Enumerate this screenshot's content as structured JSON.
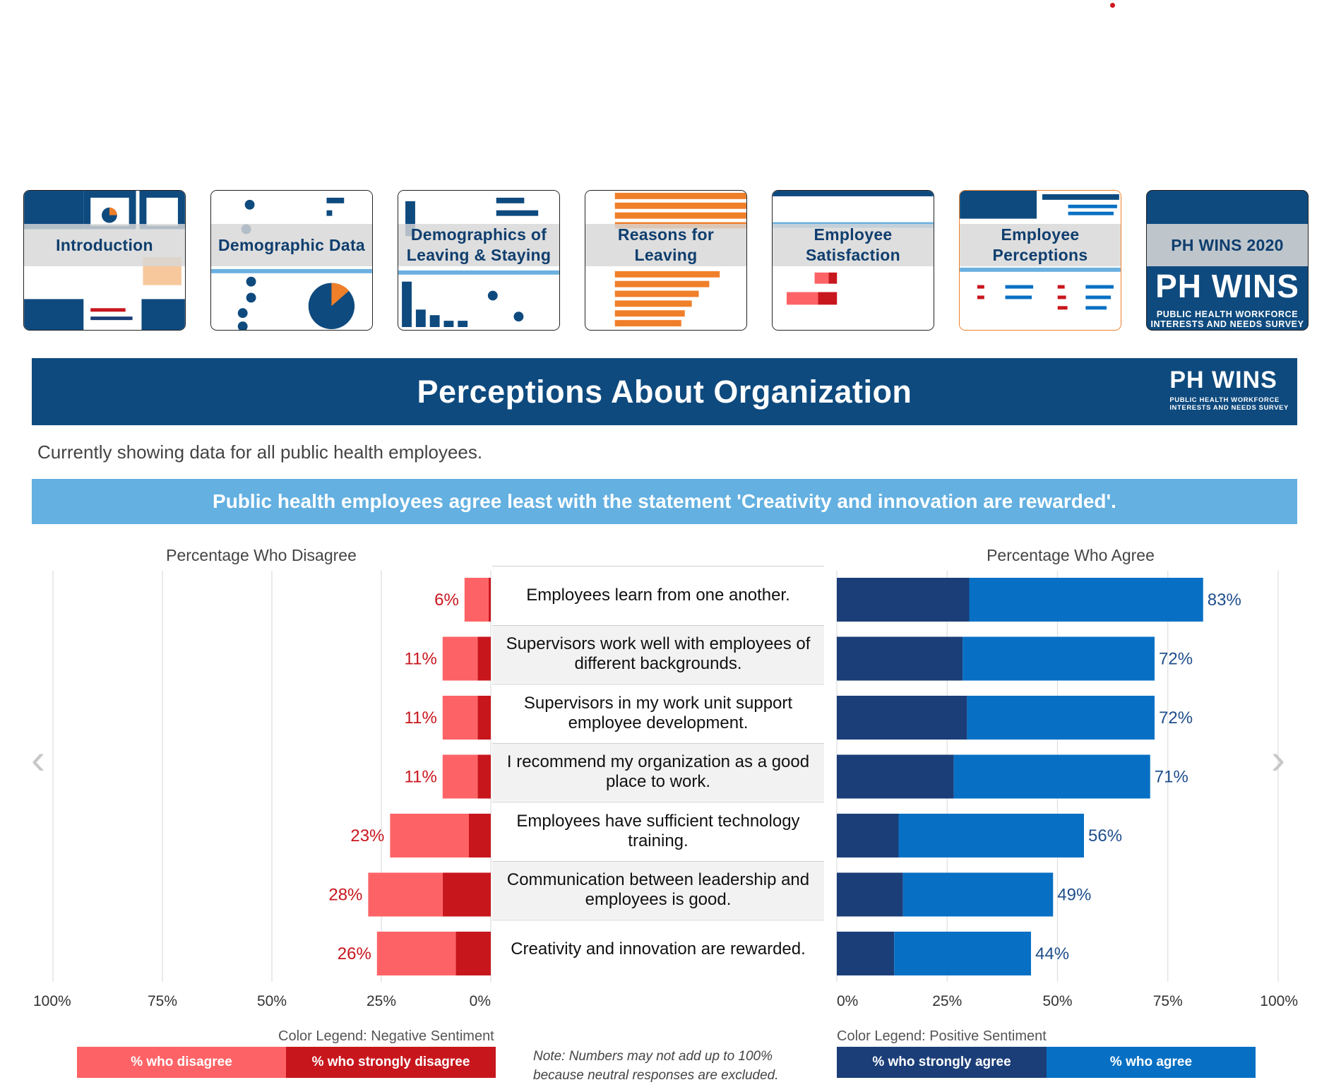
{
  "thumbnails": [
    {
      "label": "Introduction",
      "active": false
    },
    {
      "label": "Demographic Data",
      "active": false
    },
    {
      "label": "Demographics of Leaving & Staying",
      "active": false
    },
    {
      "label": "Reasons for Leaving",
      "active": false
    },
    {
      "label": "Employee Satisfaction",
      "active": false
    },
    {
      "label": "Employee Perceptions",
      "active": true
    },
    {
      "label": "PH WINS 2020",
      "active": false
    }
  ],
  "thumb_logo": {
    "name": "PH WINS",
    "line1": "PUBLIC HEALTH WORKFORCE",
    "line2": "INTERESTS AND NEEDS SURVEY"
  },
  "header": {
    "title": "Perceptions About Organization",
    "logo_name": "PH WINS",
    "logo_line1": "PUBLIC HEALTH WORKFORCE",
    "logo_line2": "INTERESTS AND NEEDS SURVEY"
  },
  "subtitle": "Currently showing data for all public health employees.",
  "banner": "Public health employees agree least with the statement 'Creativity and innovation are rewarded'.",
  "nav": {
    "prev": "‹",
    "next": "›"
  },
  "colors": {
    "header_bg": "#0e4a7e",
    "banner_bg": "#63b0e1",
    "disagree": "#fd6366",
    "strongly_disagree": "#c8161d",
    "strongly_agree": "#1b3e78",
    "agree": "#0770c4"
  },
  "chart_data": {
    "type": "bar",
    "orientation": "horizontal-diverging",
    "categories": [
      "Employees learn from one another.",
      "Supervisors work well with employees of different backgrounds.",
      "Supervisors in my work unit support employee development.",
      "I recommend my organization as a good place to work.",
      "Employees have sufficient technology training.",
      "Communication between leadership and employees is good.",
      "Creativity and innovation are rewarded."
    ],
    "disagree_title": "Percentage Who Disagree",
    "agree_title": "Percentage Who Agree",
    "series": [
      {
        "name": "% who strongly disagree",
        "side": "negative",
        "values": [
          0.5,
          3,
          3,
          3,
          5,
          11,
          8
        ]
      },
      {
        "name": "% who disagree",
        "side": "negative",
        "values": [
          5.5,
          8,
          8,
          8,
          18,
          17,
          18
        ]
      },
      {
        "name": "% who strongly agree",
        "side": "positive",
        "values": [
          30,
          28.5,
          29.5,
          26.5,
          14,
          15,
          13
        ]
      },
      {
        "name": "% who agree",
        "side": "positive",
        "values": [
          53,
          43.5,
          42.5,
          44.5,
          42,
          34,
          31
        ]
      }
    ],
    "disagree_labels": [
      "6%",
      "11%",
      "11%",
      "11%",
      "23%",
      "28%",
      "26%"
    ],
    "agree_labels": [
      "83%",
      "72%",
      "72%",
      "71%",
      "56%",
      "49%",
      "44%"
    ],
    "left_ticks": [
      "100%",
      "75%",
      "50%",
      "25%",
      "0%"
    ],
    "right_ticks": [
      "0%",
      "25%",
      "50%",
      "75%",
      "100%"
    ],
    "xlim": [
      0,
      100
    ],
    "grid": true
  },
  "legend": {
    "negative_title": "Color Legend: Negative Sentiment",
    "positive_title": "Color Legend: Positive Sentiment",
    "disagree": "% who disagree",
    "strongly_disagree": "% who strongly disagree",
    "strongly_agree": "% who strongly agree",
    "agree": "% who agree"
  },
  "note_line1": "Note: Numbers may not add up to 100%",
  "note_line2": "because neutral responses are excluded."
}
